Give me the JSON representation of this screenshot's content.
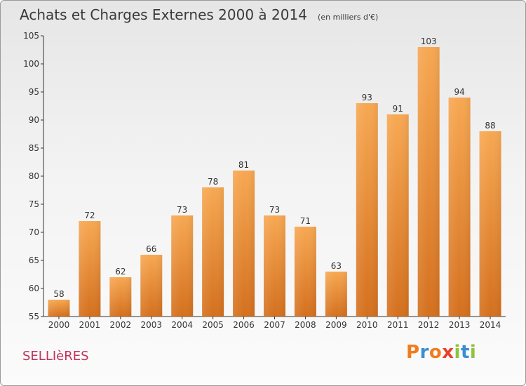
{
  "chart_data": {
    "type": "bar",
    "title": "Achats et Charges Externes 2000 à 2014",
    "unit_label": "(en milliers d'€)",
    "categories": [
      "2000",
      "2001",
      "2002",
      "2003",
      "2004",
      "2005",
      "2006",
      "2007",
      "2008",
      "2009",
      "2010",
      "2011",
      "2012",
      "2013",
      "2014"
    ],
    "values": [
      58,
      72,
      62,
      66,
      73,
      78,
      81,
      73,
      71,
      63,
      93,
      91,
      103,
      94,
      88
    ],
    "ylim": [
      55,
      105
    ],
    "yticks": [
      55,
      60,
      65,
      70,
      75,
      80,
      85,
      90,
      95,
      100,
      105
    ],
    "grid": false,
    "legend": "none",
    "bar_color_top": "#f7a852",
    "bar_color_bottom": "#d4701e"
  },
  "footer": {
    "place_name": "SELLIèRES",
    "logo_text": "Proxiti",
    "logo_colors": [
      "#f07c1e",
      "#3a8fd0",
      "#f07c1e",
      "#e8402a",
      "#8cc43c",
      "#3a8fd0",
      "#8cc43c"
    ]
  }
}
